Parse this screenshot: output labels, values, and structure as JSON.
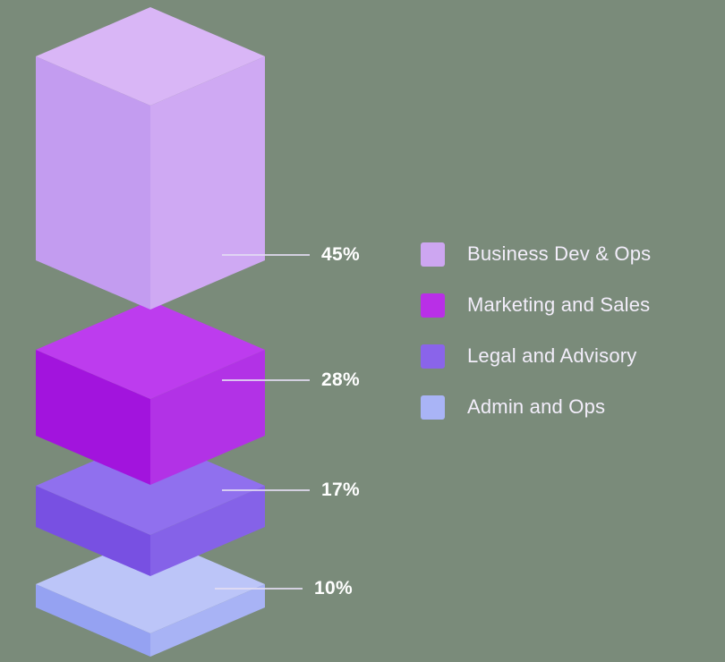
{
  "page": {
    "background": "#7a8b7a"
  },
  "chart_data": {
    "type": "bar",
    "variant": "isometric-3d-stacked-column",
    "title": "",
    "categories": [
      "Business Dev & Ops",
      "Marketing and Sales",
      "Legal and Advisory",
      "Admin and Ops"
    ],
    "values": [
      45,
      28,
      17,
      10
    ],
    "unit": "%",
    "legend_position": "right",
    "leader_line_color": "#e3dcf2",
    "label_color": "#ffffff",
    "legend_text_color": "#f3eefb",
    "segments": [
      {
        "label": "Business Dev & Ops",
        "value": 45,
        "value_label": "45%",
        "color_top": "#d9b6f6",
        "color_left": "#c39cf0",
        "color_right": "#cfa9f3",
        "legend_color": "#cda6f1"
      },
      {
        "label": "Marketing and Sales",
        "value": 28,
        "value_label": "28%",
        "color_top": "#bd3cee",
        "color_left": "#a214dd",
        "color_right": "#b232e6",
        "legend_color": "#b92fe7"
      },
      {
        "label": "Legal and Advisory",
        "value": 17,
        "value_label": "17%",
        "color_top": "#9070ee",
        "color_left": "#7850e2",
        "color_right": "#8562e8",
        "legend_color": "#8a64ea"
      },
      {
        "label": "Admin and Ops",
        "value": 10,
        "value_label": "10%",
        "color_top": "#bcc5f8",
        "color_left": "#95a2f2",
        "color_right": "#a8b3f5",
        "legend_color": "#a9b4f6"
      }
    ]
  }
}
